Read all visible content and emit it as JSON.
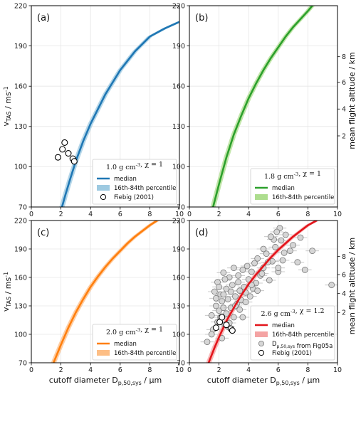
{
  "chart_data": [
    {
      "tag": "(a)",
      "type": "line",
      "color": "#1f77b4",
      "band_color": "#9ecae1",
      "ylabel": "v_TAS / ms^-1",
      "xlim": [
        0,
        10
      ],
      "ylim": [
        70,
        220
      ],
      "xticks": [
        "0",
        "2",
        "4",
        "6",
        "8",
        "10"
      ],
      "yticks": [
        "70",
        "100",
        "130",
        "160",
        "190",
        "220"
      ],
      "median": {
        "x": [
          2.07,
          2.3,
          2.6,
          3.0,
          3.5,
          4.0,
          5.0,
          6.0,
          7.0,
          8.0,
          9.0,
          10.0
        ],
        "y": [
          70,
          79,
          90,
          104,
          119,
          132,
          154,
          172,
          186,
          197,
          203,
          208
        ]
      },
      "band_width": 0.18,
      "fiebig": {
        "x": [
          1.8,
          2.1,
          2.25,
          2.5,
          2.8,
          2.9
        ],
        "y": [
          107,
          113,
          118,
          110,
          106,
          104
        ]
      },
      "legend": {
        "title": "1.0 g cm^-3, χ = 1",
        "median": "median",
        "band": "16th-84th percentile",
        "fiebig": "Fiebig (2001)"
      }
    },
    {
      "tag": "(b)",
      "type": "line",
      "color": "#2ca02c",
      "band_color": "#addd8e",
      "xlim": [
        0,
        10
      ],
      "ylim": [
        70,
        220
      ],
      "xticks": [
        "0",
        "2",
        "4",
        "6",
        "8",
        "10"
      ],
      "yticks": [
        "70",
        "100",
        "130",
        "160",
        "190",
        "220"
      ],
      "median": {
        "x": [
          1.6,
          2.0,
          2.5,
          3.0,
          3.5,
          4.0,
          4.5,
          5.0,
          5.5,
          6.0,
          6.5,
          7.0,
          7.5,
          8.0,
          8.3
        ],
        "y": [
          70,
          87,
          107,
          124,
          138,
          151,
          162,
          172,
          181,
          189,
          197,
          204,
          210,
          216,
          220
        ]
      },
      "band_width": 0.18,
      "right_label": "mean flight altitude / km",
      "right_ticks": [
        {
          "label": "2",
          "v": 123
        },
        {
          "label": "4",
          "v": 143
        },
        {
          "label": "6",
          "v": 163
        },
        {
          "label": "8",
          "v": 182
        }
      ],
      "legend": {
        "title": "1.8 g cm^-3, χ = 1",
        "median": "median",
        "band": "16th-84th percentile"
      }
    },
    {
      "tag": "(c)",
      "type": "line",
      "color": "#ff7f0e",
      "band_color": "#fdbe85",
      "ylabel": "v_TAS / ms^-1",
      "xlabel": "cutoff diameter D_p,50,sys / µm",
      "xlim": [
        0,
        10
      ],
      "ylim": [
        70,
        220
      ],
      "xticks": [
        "0",
        "2",
        "4",
        "6",
        "8",
        "10"
      ],
      "yticks": [
        "70",
        "100",
        "130",
        "160",
        "190",
        "220"
      ],
      "median": {
        "x": [
          1.5,
          2.0,
          2.5,
          3.0,
          3.5,
          4.0,
          4.5,
          5.0,
          5.5,
          6.0,
          6.5,
          7.0,
          7.5,
          8.0,
          8.5
        ],
        "y": [
          70,
          89,
          107,
          123,
          137,
          150,
          161,
          171,
          180,
          188,
          196,
          203,
          209,
          215,
          220
        ]
      },
      "band_width": 0.18,
      "legend": {
        "title": "2.0 g cm^-3, χ = 1",
        "median": "median",
        "band": "16th-84th percentile"
      }
    },
    {
      "tag": "(d)",
      "type": "scatter",
      "color": "#e3141b",
      "band_color": "#f4a3a3",
      "xlabel": "cutoff diameter D_p,50,sys / µm",
      "xlim": [
        0,
        10
      ],
      "ylim": [
        70,
        220
      ],
      "xticks": [
        "0",
        "2",
        "4",
        "6",
        "8",
        "10"
      ],
      "yticks": [
        "70",
        "100",
        "130",
        "160",
        "190",
        "220"
      ],
      "median": {
        "x": [
          1.3,
          1.7,
          2.0,
          2.5,
          3.0,
          3.5,
          4.0,
          4.5,
          5.0,
          5.5,
          6.0,
          6.5,
          7.0,
          7.5,
          8.0,
          8.6
        ],
        "y": [
          70,
          86,
          97,
          114,
          128,
          141,
          153,
          163,
          172,
          181,
          189,
          196,
          203,
          209,
          215,
          220
        ]
      },
      "band_width": 0.18,
      "right_label": "mean flight altitude / km",
      "right_ticks": [
        {
          "label": "2",
          "v": 123
        },
        {
          "label": "4",
          "v": 143
        },
        {
          "label": "6",
          "v": 163
        },
        {
          "label": "8",
          "v": 182
        }
      ],
      "scatter": {
        "x": [
          1.2,
          1.5,
          1.6,
          1.7,
          1.8,
          1.9,
          1.9,
          2.0,
          2.1,
          2.1,
          2.2,
          2.3,
          2.3,
          2.4,
          2.5,
          2.5,
          2.6,
          2.7,
          2.8,
          2.8,
          2.9,
          3.0,
          3.0,
          3.1,
          3.2,
          3.3,
          3.3,
          3.4,
          3.5,
          3.6,
          3.7,
          3.8,
          3.9,
          4.0,
          4.1,
          4.2,
          4.3,
          4.4,
          4.5,
          4.6,
          4.8,
          5.0,
          5.2,
          5.4,
          5.6,
          5.8,
          6.0,
          6.2,
          6.5,
          6.8,
          7.0,
          7.3,
          7.8,
          8.3,
          9.6,
          1.8,
          2.2,
          2.6,
          3.4,
          3.8,
          4.2,
          4.6,
          5.0,
          5.3,
          5.7,
          6.0,
          6.1,
          6.4,
          7.5,
          1.5,
          2.4,
          3.6,
          4.9,
          5.9,
          6.3,
          5.5,
          2.0,
          2.7,
          3.1,
          2.3
        ],
        "y": [
          92,
          120,
          105,
          145,
          130,
          113,
          155,
          125,
          142,
          118,
          135,
          128,
          165,
          110,
          148,
          122,
          137,
          160,
          128,
          145,
          152,
          118,
          170,
          140,
          132,
          155,
          162,
          146,
          136,
          168,
          150,
          144,
          172,
          158,
          140,
          166,
          148,
          175,
          154,
          180,
          162,
          170,
          185,
          157,
          177,
          192,
          166,
          199,
          205,
          188,
          194,
          176,
          168,
          188,
          152,
          138,
          96,
          108,
          126,
          134,
          152,
          146,
          190,
          176,
          200,
          170,
          212,
          186,
          202,
          100,
          158,
          118,
          164,
          208,
          178,
          203,
          150,
          112,
          130,
          142
        ]
      },
      "fiebig": {
        "x": [
          1.8,
          2.05,
          2.2,
          2.5,
          2.8,
          2.9
        ],
        "y": [
          107,
          113,
          118,
          110,
          106,
          104
        ]
      },
      "legend": {
        "title": "2.6 g cm^-3, χ = 1.2",
        "median": "median",
        "band": "16th-84th percentile",
        "scatter": "D_p,50,sys from Fig05a",
        "fiebig": "Fiebig (2001)"
      }
    }
  ]
}
